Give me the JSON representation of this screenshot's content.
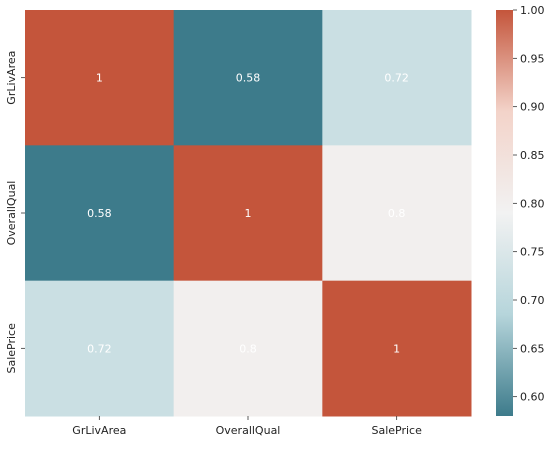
{
  "chart_data": {
    "type": "heatmap",
    "title": "",
    "xlabel": "",
    "ylabel": "",
    "x_categories": [
      "GrLivArea",
      "OverallQual",
      "SalePrice"
    ],
    "y_categories": [
      "GrLivArea",
      "OverallQual",
      "SalePrice"
    ],
    "values": [
      [
        1,
        0.58,
        0.72
      ],
      [
        0.58,
        1,
        0.8
      ],
      [
        0.72,
        0.8,
        1
      ]
    ],
    "cell_labels": [
      [
        "1",
        "0.58",
        "0.72"
      ],
      [
        "0.58",
        "1",
        "0.8"
      ],
      [
        "0.72",
        "0.8",
        "1"
      ]
    ],
    "colorbar": {
      "vmin": 0.58,
      "vmax": 1.0,
      "ticks": [
        0.6,
        0.65,
        0.7,
        0.75,
        0.8,
        0.85,
        0.9,
        0.95,
        1.0
      ],
      "tick_labels": [
        "0.60",
        "0.65",
        "0.70",
        "0.75",
        "0.80",
        "0.85",
        "0.90",
        "0.95",
        "1.00"
      ],
      "palette": "diverging teal to white to orange-red",
      "color_stops": [
        "#3d7b8b",
        "#b6d5db",
        "#f2f2f2",
        "#f3d3c9",
        "#c4553b"
      ]
    },
    "grid": false,
    "legend": "colorbar on right"
  }
}
